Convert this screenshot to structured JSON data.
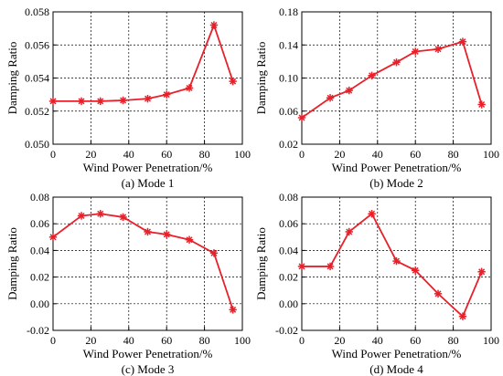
{
  "figure": {
    "background": "#ffffff",
    "series_color": "#e8202a"
  },
  "chart_data": [
    {
      "type": "line",
      "panel": "(a) Mode 1",
      "caption": "(a) Mode 1",
      "xlabel": "Wind Power Penetration/%",
      "ylabel": "Damping Ratio",
      "xlim": [
        0,
        100
      ],
      "ylim": [
        0.05,
        0.058
      ],
      "xticks": [
        0,
        20,
        40,
        60,
        80,
        100
      ],
      "yticks": [
        0.05,
        0.052,
        0.054,
        0.056,
        0.058
      ],
      "yticklabels": [
        "0.050",
        "0.052",
        "0.054",
        "0.056",
        "0.058"
      ],
      "grid": true,
      "marker": "asterisk",
      "x": [
        0,
        15,
        25,
        37,
        50,
        60,
        72,
        85,
        95
      ],
      "y": [
        0.0526,
        0.0526,
        0.0526,
        0.05265,
        0.05275,
        0.053,
        0.0534,
        0.0572,
        0.0538
      ]
    },
    {
      "type": "line",
      "panel": "(b) Mode 2",
      "caption": "(b) Mode 2",
      "xlabel": "Wind Power Penetration/%",
      "ylabel": "Damping Ratio",
      "xlim": [
        0,
        100
      ],
      "ylim": [
        0.02,
        0.18
      ],
      "xticks": [
        0,
        20,
        40,
        60,
        80,
        100
      ],
      "yticks": [
        0.02,
        0.06,
        0.1,
        0.14,
        0.18
      ],
      "yticklabels": [
        "0.02",
        "0.06",
        "0.10",
        "0.14",
        "0.18"
      ],
      "grid": true,
      "marker": "asterisk",
      "x": [
        0,
        15,
        25,
        37,
        50,
        60,
        72,
        85,
        95
      ],
      "y": [
        0.052,
        0.076,
        0.085,
        0.103,
        0.119,
        0.132,
        0.135,
        0.144,
        0.068
      ]
    },
    {
      "type": "line",
      "panel": "(c) Mode 3",
      "caption": "(c) Mode 3",
      "xlabel": "Wind Power Penetration/%",
      "ylabel": "Damping Ratio",
      "xlim": [
        0,
        100
      ],
      "ylim": [
        -0.02,
        0.08
      ],
      "xticks": [
        0,
        20,
        40,
        60,
        80,
        100
      ],
      "yticks": [
        -0.02,
        0.0,
        0.02,
        0.04,
        0.06,
        0.08
      ],
      "yticklabels": [
        "-0.02",
        "0.00",
        "0.02",
        "0.04",
        "0.06",
        "0.08"
      ],
      "grid": true,
      "marker": "asterisk",
      "x": [
        0,
        15,
        25,
        37,
        50,
        60,
        72,
        85,
        95
      ],
      "y": [
        0.05,
        0.066,
        0.0675,
        0.065,
        0.054,
        0.052,
        0.048,
        0.038,
        -0.0045
      ]
    },
    {
      "type": "line",
      "panel": "(d) Mode 4",
      "caption": "(d) Mode 4",
      "xlabel": "Wind Power Penetration/%",
      "ylabel": "Damping Ratio",
      "xlim": [
        0,
        100
      ],
      "ylim": [
        -0.02,
        0.08
      ],
      "xticks": [
        0,
        20,
        40,
        60,
        80,
        100
      ],
      "yticks": [
        -0.02,
        0.0,
        0.02,
        0.04,
        0.06,
        0.08
      ],
      "yticklabels": [
        "-0.02",
        "0.00",
        "0.02",
        "0.04",
        "0.06",
        "0.08"
      ],
      "grid": true,
      "marker": "asterisk",
      "x": [
        0,
        15,
        25,
        37,
        50,
        60,
        72,
        85,
        95
      ],
      "y": [
        0.028,
        0.028,
        0.054,
        0.0675,
        0.032,
        0.025,
        0.0075,
        -0.0095,
        0.024
      ]
    }
  ]
}
